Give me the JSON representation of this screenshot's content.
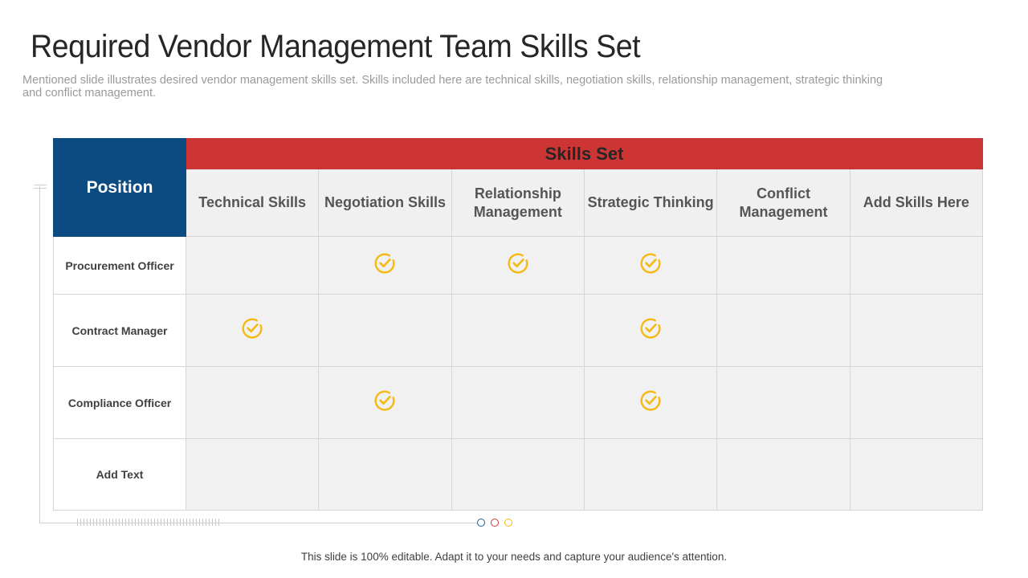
{
  "slide": {
    "title": "Required Vendor Management Team Skills Set",
    "subtitle": "Mentioned slide illustrates desired vendor management skills set. Skills included here are technical skills, negotiation skills, relationship management, strategic thinking and conflict management.",
    "footer": "This slide is 100% editable. Adapt it to your needs and capture your audience's attention."
  },
  "table": {
    "position_header": "Position",
    "skills_header": "Skills Set",
    "columns": [
      "Technical Skills",
      "Negotiation Skills",
      "Relationship Management",
      "Strategic Thinking",
      "Conflict Management",
      "Add Skills Here"
    ],
    "rows": [
      {
        "label": "Procurement Officer",
        "checks": [
          false,
          true,
          true,
          true,
          false,
          false
        ]
      },
      {
        "label": "Contract Manager",
        "checks": [
          true,
          false,
          false,
          true,
          false,
          false
        ]
      },
      {
        "label": "Compliance Officer",
        "checks": [
          false,
          true,
          false,
          true,
          false,
          false
        ]
      },
      {
        "label": "Add Text",
        "checks": [
          false,
          false,
          false,
          false,
          false,
          false
        ]
      }
    ]
  },
  "colors": {
    "position_header_bg": "#0c4a82",
    "skills_header_bg": "#cd3535",
    "check_color": "#f5b914",
    "dot_colors": [
      "#1f5a8a",
      "#c0392b",
      "#f5b914"
    ]
  },
  "icons": {
    "check": "check-circle-icon"
  }
}
